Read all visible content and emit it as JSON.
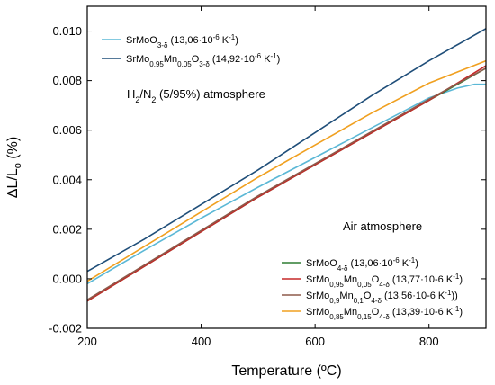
{
  "chart_data": {
    "type": "line",
    "xlabel": "Temperature (ºC)",
    "ylabel": "ΔL/L",
    "ylabel_sub": "o",
    "ylabel_unit": " (%)",
    "xlim": [
      200,
      900
    ],
    "ylim": [
      -0.002,
      0.011
    ],
    "x_ticks": [
      200,
      400,
      600,
      800
    ],
    "x_tick_labels": [
      "200",
      "400",
      "600",
      "800"
    ],
    "y_ticks": [
      -0.002,
      0.0,
      0.002,
      0.004,
      0.006,
      0.008,
      0.01
    ],
    "y_tick_labels": [
      "-0.002",
      "0.000",
      "0.002",
      "0.004",
      "0.006",
      "0.008",
      "0.010"
    ],
    "grid": false,
    "annotations": [
      {
        "id": "h2",
        "text": "H2/N2 (5/95%) atmosphere",
        "pre": "H",
        "s1": "2",
        "mid": "/N",
        "s2": "2",
        "post": " (5/95%) atmosphere"
      },
      {
        "id": "air",
        "text": "Air atmosphere"
      }
    ],
    "series": [
      {
        "name": "SrMoO3-δ (13,06·10-6 K-1)",
        "label_parts": [
          [
            "SrMoO",
            ""
          ],
          [
            "3-δ",
            "sub"
          ],
          [
            " (13,06·10",
            ""
          ],
          [
            "-6",
            "sup"
          ],
          [
            " K",
            ""
          ],
          [
            "-1",
            "sup"
          ],
          [
            ")",
            ""
          ]
        ],
        "color": "#5bb8d6",
        "legend": "top",
        "x": [
          200,
          300,
          400,
          500,
          600,
          700,
          750,
          800,
          850,
          880,
          900
        ],
        "y": [
          -0.0002,
          0.00115,
          0.00245,
          0.0037,
          0.0049,
          0.0061,
          0.0067,
          0.0073,
          0.0077,
          0.00785,
          0.00785
        ]
      },
      {
        "name": "SrMo0,95Mn0,05O3-δ (14,92·10-6 K-1)",
        "label_parts": [
          [
            "SrMo",
            ""
          ],
          [
            "0,95",
            "sub"
          ],
          [
            "Mn",
            ""
          ],
          [
            "0,05",
            "sub"
          ],
          [
            "O",
            ""
          ],
          [
            "3-δ",
            "sub"
          ],
          [
            " (14,92·10",
            ""
          ],
          [
            "-6",
            "sup"
          ],
          [
            " K",
            ""
          ],
          [
            "-1",
            "sup"
          ],
          [
            ")",
            ""
          ]
        ],
        "color": "#1f4e79",
        "legend": "top",
        "x": [
          200,
          300,
          400,
          500,
          600,
          700,
          800,
          900
        ],
        "y": [
          0.0003,
          0.0016,
          0.003,
          0.0044,
          0.0059,
          0.0074,
          0.0088,
          0.0101
        ]
      },
      {
        "name": "SrMoO4-δ (13,06·10-6 K-1)",
        "label_parts": [
          [
            "SrMoO",
            ""
          ],
          [
            "4-δ",
            "sub"
          ],
          [
            " (13,06·10",
            ""
          ],
          [
            "-6",
            "sup"
          ],
          [
            " K",
            ""
          ],
          [
            "-1",
            "sup"
          ],
          [
            ")",
            ""
          ]
        ],
        "color": "#2e7d32",
        "legend": "bottom",
        "x": [
          200,
          300,
          400,
          500,
          600,
          700,
          800,
          900
        ],
        "y": [
          -0.0009,
          0.0005,
          0.0019,
          0.0033,
          0.0046,
          0.0059,
          0.0072,
          0.0085
        ]
      },
      {
        "name": "SrMo0,95Mn0,05O4-δ (13,77·10-6 K-1)",
        "label_parts": [
          [
            "SrMo",
            ""
          ],
          [
            "0,95",
            "sub"
          ],
          [
            "Mn",
            ""
          ],
          [
            "0,05",
            "sub"
          ],
          [
            "O",
            ""
          ],
          [
            "4-δ",
            "sub"
          ],
          [
            " (13,77·10-6 K",
            ""
          ],
          [
            "-1",
            "sup"
          ],
          [
            ")",
            ""
          ]
        ],
        "color": "#c62828",
        "legend": "bottom",
        "x": [
          200,
          300,
          400,
          500,
          600,
          700,
          800,
          900
        ],
        "y": [
          -0.0009,
          0.0005,
          0.0019,
          0.0033,
          0.0046,
          0.0059,
          0.0072,
          0.0086
        ]
      },
      {
        "name": "SrMo0,9Mn0,1O4-δ (13,56·10-6 K-1))",
        "label_parts": [
          [
            "SrMo",
            ""
          ],
          [
            "0,9",
            "sub"
          ],
          [
            "Mn",
            ""
          ],
          [
            "0,1",
            "sub"
          ],
          [
            "O",
            ""
          ],
          [
            "4-δ",
            "sub"
          ],
          [
            " (13,56·10-6 K",
            ""
          ],
          [
            "-1",
            "sup"
          ],
          [
            "))",
            ""
          ]
        ],
        "color": "#8d5a4a",
        "legend": "bottom",
        "x": [
          200,
          300,
          400,
          500,
          600,
          700,
          800,
          900
        ],
        "y": [
          -0.00085,
          0.00055,
          0.00195,
          0.00335,
          0.00465,
          0.00595,
          0.00725,
          0.0085
        ]
      },
      {
        "name": "SrMo0,85Mn0,15O4-δ (13,39·10-6 K-1)",
        "label_parts": [
          [
            "SrMo",
            ""
          ],
          [
            "0,85",
            "sub"
          ],
          [
            "Mn",
            ""
          ],
          [
            "0,15",
            "sub"
          ],
          [
            "O",
            ""
          ],
          [
            "4-δ",
            "sub"
          ],
          [
            " (13,39·10-6 K",
            ""
          ],
          [
            "-1",
            "sup"
          ],
          [
            ")",
            ""
          ]
        ],
        "color": "#f0a020",
        "legend": "bottom",
        "x": [
          200,
          300,
          400,
          500,
          600,
          700,
          800,
          900
        ],
        "y": [
          -0.0001,
          0.0013,
          0.0027,
          0.0041,
          0.0054,
          0.0067,
          0.0079,
          0.0088
        ]
      }
    ]
  }
}
